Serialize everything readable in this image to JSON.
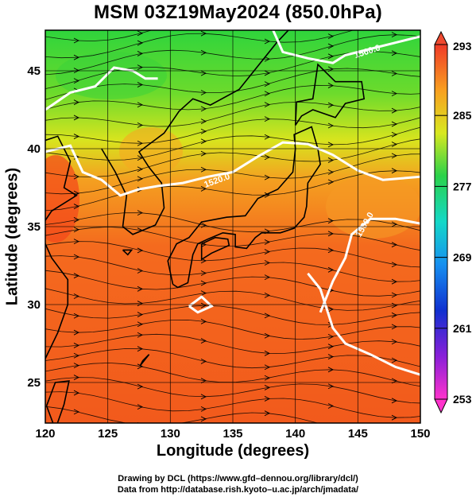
{
  "title": "MSM 03Z19May2024 (850.0hPa)",
  "x_axis": {
    "label": "Longitude (degrees)",
    "ticks": [
      "120",
      "125",
      "130",
      "135",
      "140",
      "145",
      "150"
    ],
    "range": [
      120,
      150
    ]
  },
  "y_axis": {
    "label": "Latitude  (degrees)",
    "ticks": [
      "25",
      "30",
      "35",
      "40",
      "45"
    ],
    "range": [
      22.4,
      47.6
    ]
  },
  "colorbar": {
    "ticks": [
      "293",
      "285",
      "277",
      "269",
      "261",
      "253"
    ],
    "range": [
      253,
      293
    ]
  },
  "contour_labels": [
    "1560.0",
    "1520.0",
    "1500.0"
  ],
  "credits": [
    "Drawing by DCL (https://www.gfd–dennou.org/library/dcl/)",
    "Data from http://database.rish.kyoto–u.ac.jp/arch/jmadata/"
  ],
  "colors": {
    "warm": "#f25a1e",
    "mid": "#e8e020",
    "cool": "#22c83a",
    "contour": "#ffffff",
    "coast": "#000000"
  }
}
